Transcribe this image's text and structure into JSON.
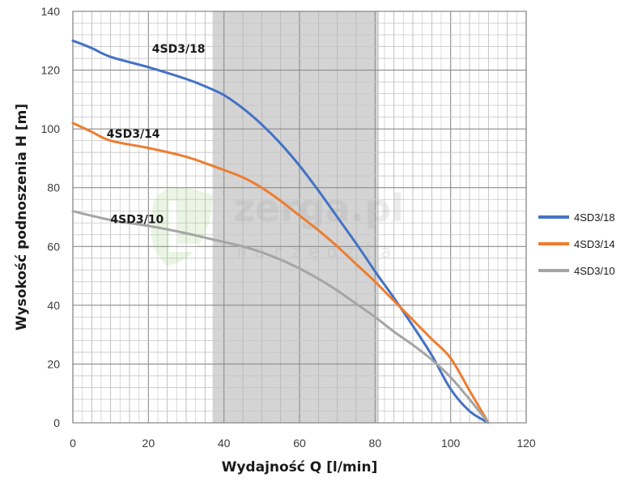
{
  "chart_data": {
    "type": "line",
    "xlabel": "Wydajność Q [l/min]",
    "ylabel": "Wysokość podnoszenia H [m]",
    "xlim": [
      0,
      120
    ],
    "ylim": [
      0,
      140
    ],
    "x_ticks": [
      0,
      20,
      40,
      60,
      80,
      100,
      120
    ],
    "y_ticks": [
      0,
      20,
      40,
      60,
      80,
      100,
      120,
      140
    ],
    "grid": true,
    "legend_position": "right",
    "highlight_range": {
      "x_from": 37,
      "x_to": 81,
      "color": "#d4d4d4"
    },
    "series": [
      {
        "name": "4SD3/18",
        "color": "#4472c4",
        "x": [
          0,
          5,
          10,
          20,
          30,
          35,
          40,
          45,
          50,
          55,
          60,
          65,
          70,
          75,
          80,
          85,
          90,
          95,
          100,
          105,
          110
        ],
        "y": [
          130,
          127.5,
          124.5,
          121,
          117,
          114.5,
          111.5,
          107,
          101.5,
          95,
          87.5,
          79,
          70,
          61,
          51.5,
          42.5,
          33,
          23,
          11.5,
          4,
          0
        ]
      },
      {
        "name": "4SD3/14",
        "color": "#ed7d31",
        "x": [
          0,
          5,
          10,
          20,
          30,
          40,
          45,
          50,
          55,
          60,
          65,
          70,
          75,
          80,
          85,
          90,
          95,
          100,
          105,
          110
        ],
        "y": [
          102,
          99,
          96,
          93.5,
          90.5,
          86,
          83.5,
          80,
          75.5,
          70.5,
          65.5,
          60,
          54,
          48,
          41.5,
          35,
          28.5,
          22,
          11,
          0
        ]
      },
      {
        "name": "4SD3/10",
        "color": "#a5a5a5",
        "x": [
          0,
          10,
          20,
          30,
          35,
          40,
          45,
          50,
          55,
          60,
          65,
          70,
          75,
          80,
          85,
          90,
          95,
          100,
          105,
          110
        ],
        "y": [
          72,
          69,
          67,
          64.5,
          63,
          61.5,
          60,
          58,
          55.5,
          52.5,
          49,
          45,
          40.5,
          36,
          31,
          26.5,
          21.5,
          15.5,
          8,
          0
        ]
      }
    ],
    "curve_labels": [
      {
        "text": "4SD3/18",
        "x": 28,
        "y": 126
      },
      {
        "text": "4SD3/14",
        "x": 16,
        "y": 97
      },
      {
        "text": "4SD3/10",
        "x": 17,
        "y": 68
      }
    ]
  },
  "watermark": {
    "brand": "zerga.pl",
    "sub": "narzędzia"
  }
}
